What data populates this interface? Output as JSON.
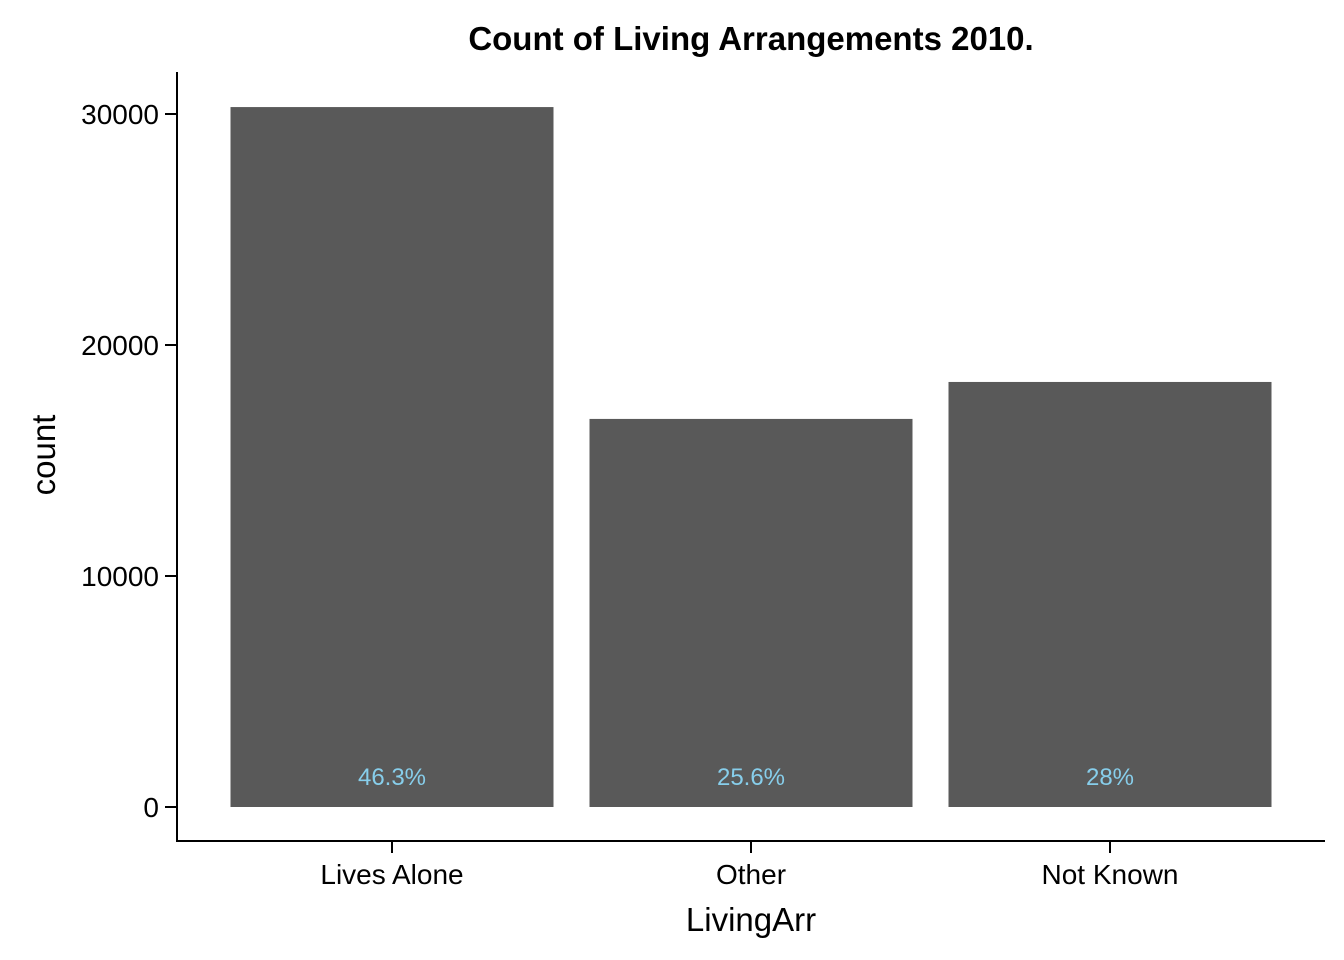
{
  "chart_data": {
    "type": "bar",
    "title": "Count of Living Arrangements 2010.",
    "xlabel": "LivingArr",
    "ylabel": "count",
    "categories": [
      "Lives Alone",
      "Other",
      "Not Known"
    ],
    "values": [
      30300,
      16800,
      18400
    ],
    "data_labels": [
      "46.3%",
      "25.6%",
      "28%"
    ],
    "yticks": [
      0,
      10000,
      20000,
      30000
    ],
    "ytick_labels": [
      "0",
      "10000",
      "20000",
      "30000"
    ],
    "ylim": [
      0,
      32000
    ],
    "grid": false,
    "legend": "none",
    "colors": {
      "bar": "#595959",
      "data_label": "#87ceeb",
      "axis": "#000000"
    }
  }
}
